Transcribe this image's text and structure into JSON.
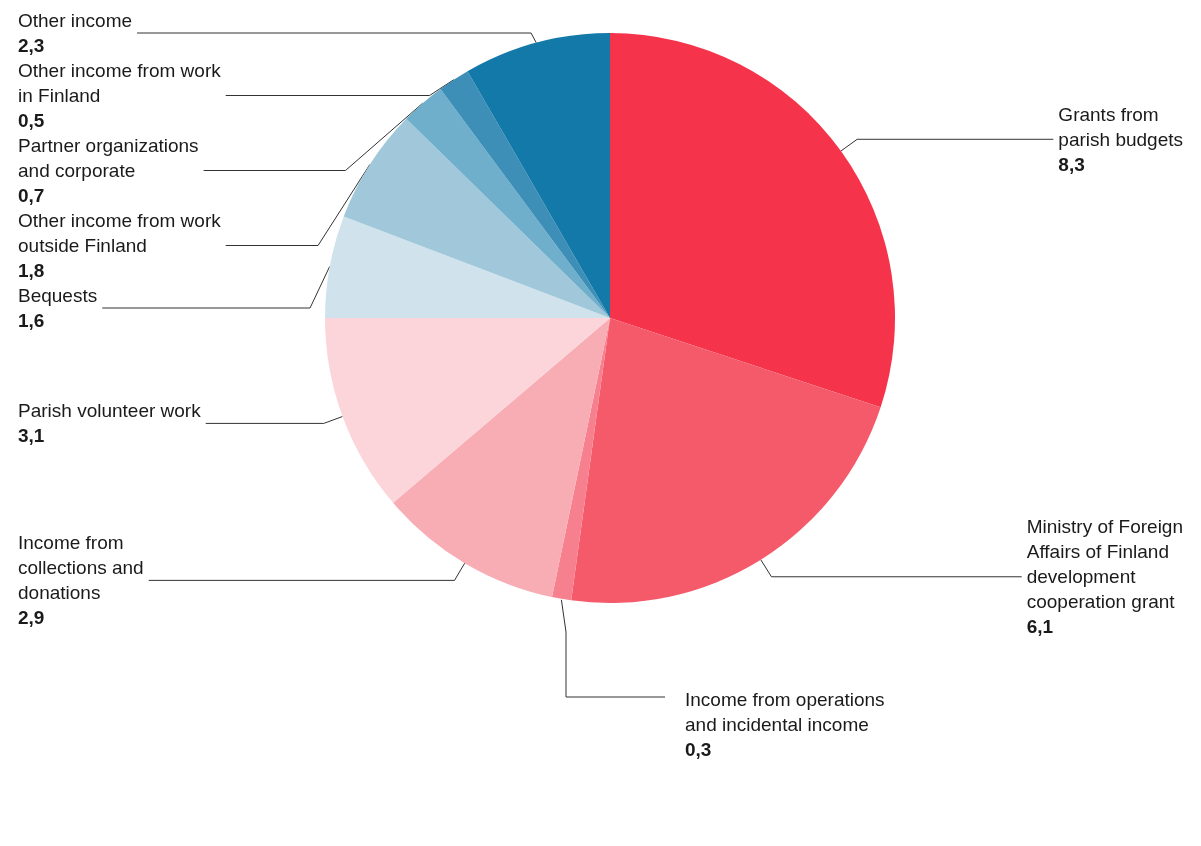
{
  "chart_data": {
    "type": "pie",
    "categories": [
      "Grants from parish budgets",
      "Ministry of Foreign Affairs of Finland development cooperation grant",
      "Income from operations and incidental income",
      "Income from collections and donations",
      "Parish volunteer work",
      "Bequests",
      "Other income from work outside Finland",
      "Partner organizations and corporate",
      "Other income from work in Finland",
      "Other income"
    ],
    "values": [
      8.3,
      6.1,
      0.3,
      2.9,
      3.1,
      1.6,
      1.8,
      0.7,
      0.5,
      2.3
    ],
    "value_labels": [
      "8,3",
      "6,1",
      "0,3",
      "2,9",
      "3,1",
      "1,6",
      "1,8",
      "0,7",
      "0,5",
      "2,3"
    ],
    "colors": [
      "#f5334a",
      "#f55a6b",
      "#f7808e",
      "#f8adb4",
      "#fbd5da",
      "#d0e3ec",
      "#a0c8da",
      "#6fafcb",
      "#3d8fb8",
      "#1379a8"
    ]
  }
}
